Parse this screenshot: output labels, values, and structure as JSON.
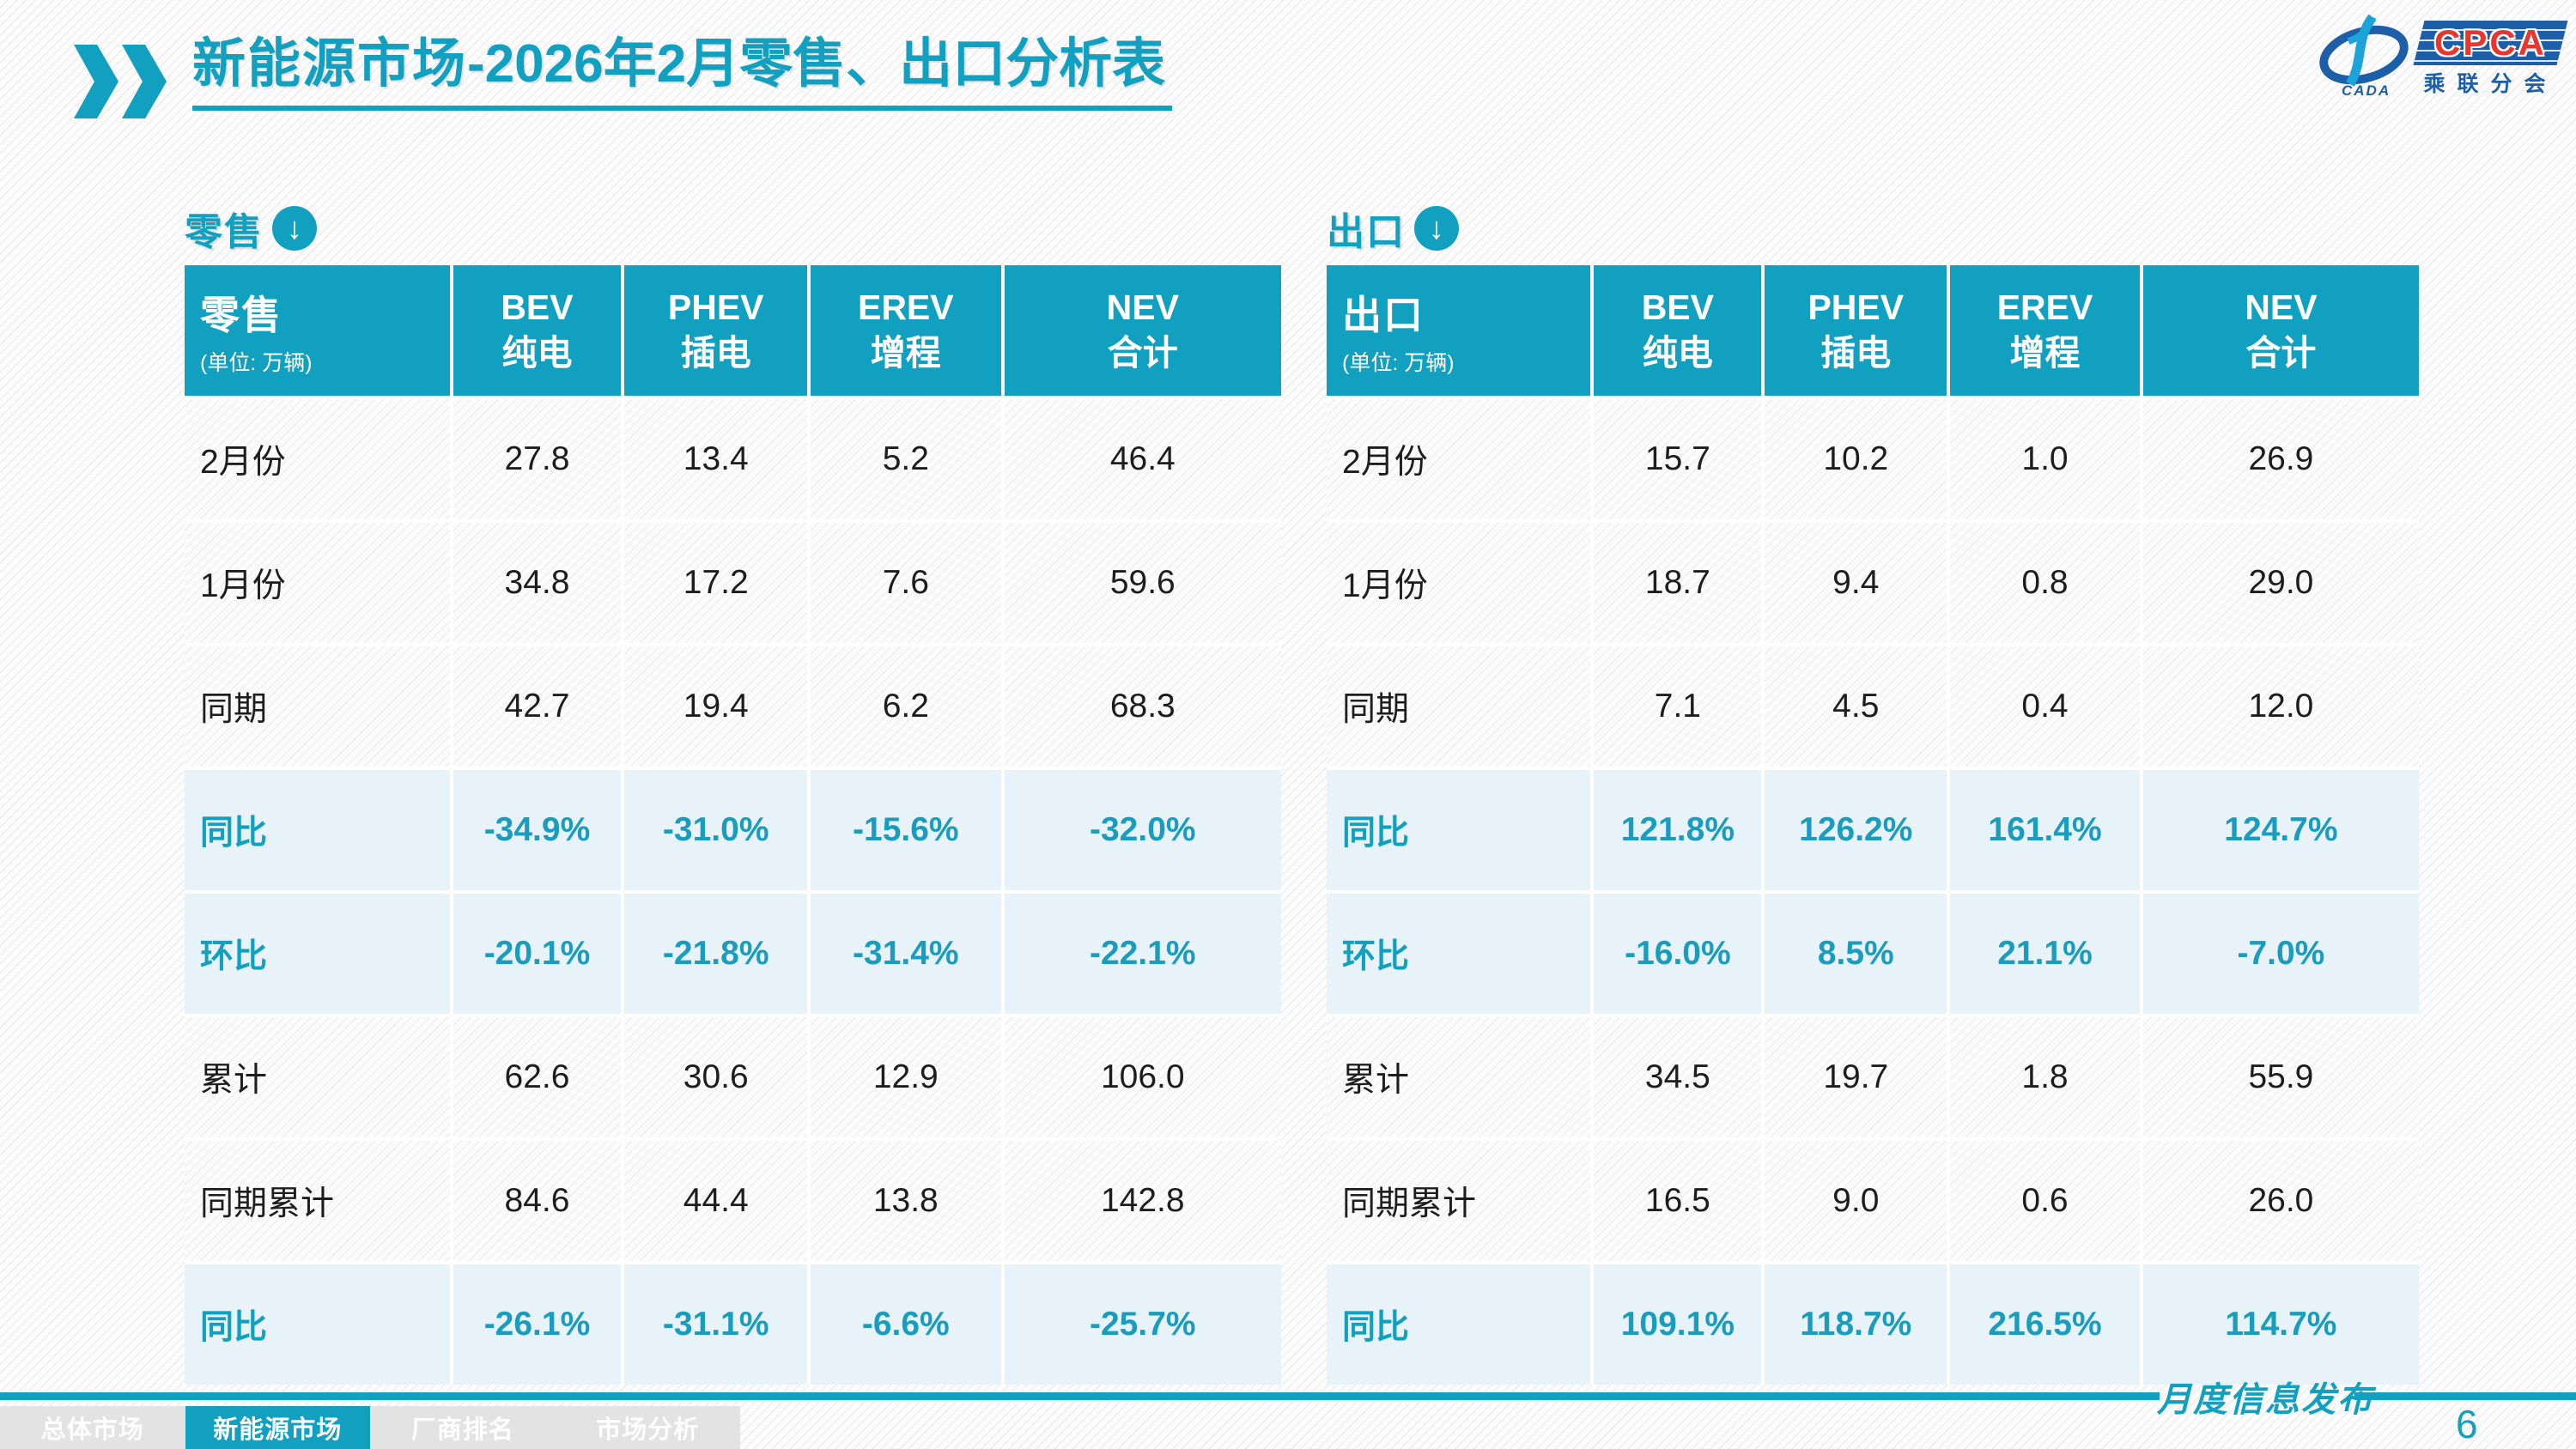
{
  "page": {
    "title_main": "新能源市场",
    "title_rest": "-2026年2月零售、出口分析表",
    "footer_note": "月度信息发布",
    "page_number": "6"
  },
  "colors": {
    "accent": "#12A0C0",
    "highlight_row_bg": "#E8F3F9",
    "logo_blue": "#1C5FA8",
    "logo_red": "#E8352E"
  },
  "logo": {
    "name": "CPCA",
    "cn": "乘联分会",
    "cada": "CADA"
  },
  "watermark": {
    "line1": "CPCA",
    "line2": "乘联分会"
  },
  "tables": [
    {
      "section_label": "零售",
      "header": {
        "title": "零售",
        "unit": "(单位: 万辆)",
        "cols": [
          {
            "l1": "BEV",
            "l2": "纯电"
          },
          {
            "l1": "PHEV",
            "l2": "插电"
          },
          {
            "l1": "EREV",
            "l2": "增程"
          },
          {
            "l1": "NEV",
            "l2": "合计"
          }
        ]
      },
      "rows": [
        {
          "label": "2月份",
          "type": "normal",
          "values": [
            "27.8",
            "13.4",
            "5.2",
            "46.4"
          ]
        },
        {
          "label": "1月份",
          "type": "normal",
          "values": [
            "34.8",
            "17.2",
            "7.6",
            "59.6"
          ]
        },
        {
          "label": "同期",
          "type": "normal",
          "values": [
            "42.7",
            "19.4",
            "6.2",
            "68.3"
          ]
        },
        {
          "label": "同比",
          "type": "highlight",
          "values": [
            "-34.9%",
            "-31.0%",
            "-15.6%",
            "-32.0%"
          ]
        },
        {
          "label": "环比",
          "type": "highlight",
          "values": [
            "-20.1%",
            "-21.8%",
            "-31.4%",
            "-22.1%"
          ]
        },
        {
          "label": "累计",
          "type": "normal",
          "values": [
            "62.6",
            "30.6",
            "12.9",
            "106.0"
          ]
        },
        {
          "label": "同期累计",
          "type": "normal",
          "values": [
            "84.6",
            "44.4",
            "13.8",
            "142.8"
          ]
        },
        {
          "label": "同比",
          "type": "highlight",
          "values": [
            "-26.1%",
            "-31.1%",
            "-6.6%",
            "-25.7%"
          ]
        }
      ]
    },
    {
      "section_label": "出口",
      "header": {
        "title": "出口",
        "unit": "(单位: 万辆)",
        "cols": [
          {
            "l1": "BEV",
            "l2": "纯电"
          },
          {
            "l1": "PHEV",
            "l2": "插电"
          },
          {
            "l1": "EREV",
            "l2": "增程"
          },
          {
            "l1": "NEV",
            "l2": "合计"
          }
        ]
      },
      "rows": [
        {
          "label": "2月份",
          "type": "normal",
          "values": [
            "15.7",
            "10.2",
            "1.0",
            "26.9"
          ]
        },
        {
          "label": "1月份",
          "type": "normal",
          "values": [
            "18.7",
            "9.4",
            "0.8",
            "29.0"
          ]
        },
        {
          "label": "同期",
          "type": "normal",
          "values": [
            "7.1",
            "4.5",
            "0.4",
            "12.0"
          ]
        },
        {
          "label": "同比",
          "type": "highlight",
          "values": [
            "121.8%",
            "126.2%",
            "161.4%",
            "124.7%"
          ]
        },
        {
          "label": "环比",
          "type": "highlight",
          "values": [
            "-16.0%",
            "8.5%",
            "21.1%",
            "-7.0%"
          ]
        },
        {
          "label": "累计",
          "type": "normal",
          "values": [
            "34.5",
            "19.7",
            "1.8",
            "55.9"
          ]
        },
        {
          "label": "同期累计",
          "type": "normal",
          "values": [
            "16.5",
            "9.0",
            "0.6",
            "26.0"
          ]
        },
        {
          "label": "同比",
          "type": "highlight",
          "values": [
            "109.1%",
            "118.7%",
            "216.5%",
            "114.7%"
          ]
        }
      ]
    }
  ],
  "nav": {
    "tabs": [
      {
        "label": "总体市场",
        "active": false
      },
      {
        "label": "新能源市场",
        "active": true
      },
      {
        "label": "厂商排名",
        "active": false
      },
      {
        "label": "市场分析",
        "active": false
      }
    ]
  }
}
